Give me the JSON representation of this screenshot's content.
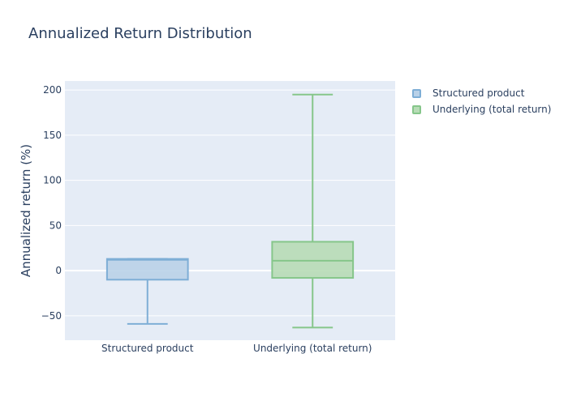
{
  "chart_data": {
    "type": "box",
    "title": "Annualized Return Distribution",
    "xlabel": "",
    "ylabel": "Annualized return (%)",
    "ylim": [
      -77,
      210
    ],
    "yticks": [
      -50,
      0,
      50,
      100,
      150,
      200
    ],
    "ytick_labels": [
      "−50",
      "0",
      "50",
      "100",
      "150",
      "200"
    ],
    "categories": [
      "Structured product",
      "Underlying (total return)"
    ],
    "series": [
      {
        "name": "Structured product",
        "color": "#7eaed6",
        "fill": "#b9d1e8",
        "whisker_low": -59,
        "q1": -10,
        "median": 12,
        "q3": 13,
        "whisker_high": 13
      },
      {
        "name": "Underlying (total return)",
        "color": "#86c68a",
        "fill": "#b7dcb6",
        "whisker_low": -63,
        "q1": -8,
        "median": 11,
        "q3": 32,
        "whisker_high": 195
      }
    ],
    "grid": true,
    "legend_position": "top-right"
  }
}
